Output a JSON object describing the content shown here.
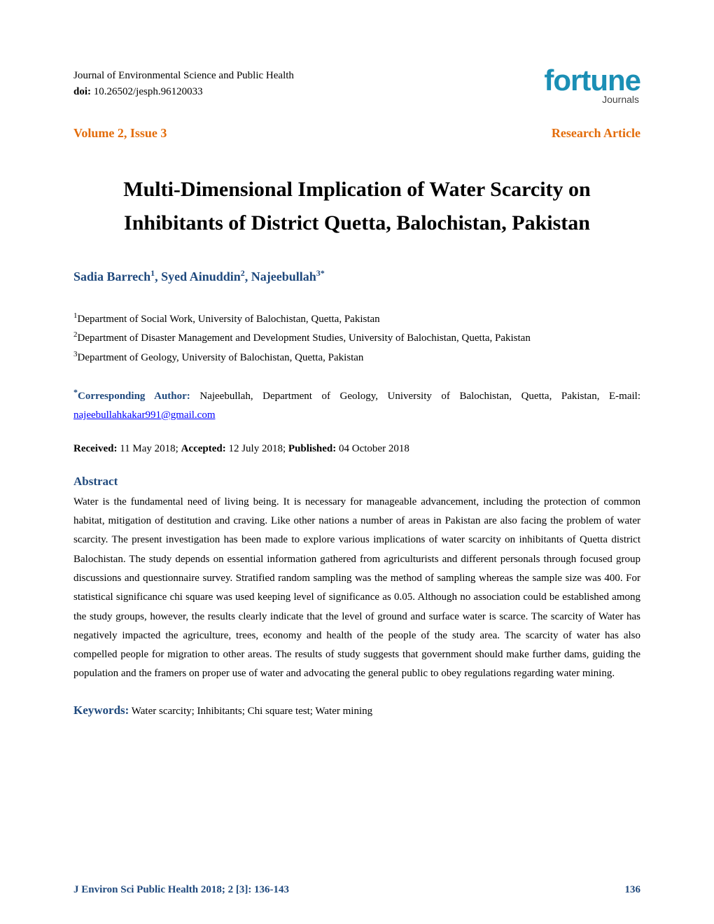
{
  "header": {
    "journal_name": "Journal of Environmental Science and Public Health",
    "doi_label": "doi:",
    "doi_value": " 10.26502/jesph.96120033",
    "logo_main": "fortune",
    "logo_sub": "Journals"
  },
  "meta": {
    "volume_issue": "Volume 2, Issue 3",
    "article_type": "Research Article"
  },
  "title": "Multi-Dimensional Implication of Water Scarcity on Inhibitants of District Quetta, Balochistan, Pakistan",
  "authors": {
    "a1_name": "Sadia Barrech",
    "a1_sup": "1",
    "a2_name": "Syed Ainuddin",
    "a2_sup": "2",
    "a3_name": "Najeebullah",
    "a3_sup": "3*"
  },
  "affiliations": {
    "aff1_sup": "1",
    "aff1": "Department of Social Work, University of Balochistan, Quetta, Pakistan",
    "aff2_sup": "2",
    "aff2": "Department of Disaster Management and Development Studies, University of Balochistan, Quetta, Pakistan",
    "aff3_sup": "3",
    "aff3": "Department of Geology, University of Balochistan, Quetta, Pakistan"
  },
  "corresponding": {
    "label_sup": "*",
    "label": "Corresponding Author:",
    "text": " Najeebullah, Department of Geology, University of Balochistan, Quetta, Pakistan, E-mail: ",
    "email": "najeebullahkakar991@gmail.com"
  },
  "dates": {
    "received_label": "Received:",
    "received": " 11 May 2018; ",
    "accepted_label": "Accepted:",
    "accepted": " 12 July 2018; ",
    "published_label": "Published:",
    "published": " 04 October 2018"
  },
  "abstract": {
    "heading": "Abstract",
    "text": "Water is the fundamental need of living being. It is necessary for manageable advancement, including the protection of common habitat, mitigation of destitution and craving. Like other nations a number of areas in Pakistan are also facing the problem of water scarcity. The present investigation has been made to explore various implications of water scarcity on inhibitants of Quetta district Balochistan. The study depends on essential information gathered from agriculturists and different personals through focused group discussions and questionnaire survey. Stratified random sampling was the method of sampling whereas the sample size was 400. For statistical significance chi square was used keeping level of significance as 0.05. Although no association could be established among the study groups, however, the results clearly indicate that the level of ground and surface water is scarce. The scarcity of Water has negatively impacted the agriculture, trees, economy and health of the people of the study area. The scarcity of water has also compelled people for migration to other areas. The results of study suggests that government should make further dams, guiding the population and the framers on proper use of water and advocating the general public to obey regulations regarding water mining."
  },
  "keywords": {
    "label": "Keywords:",
    "text": " Water scarcity; Inhibitants; Chi square test; Water mining"
  },
  "footer": {
    "citation": "J Environ Sci Public Health 2018; 2 [3]: 136-143",
    "page": "136"
  },
  "colors": {
    "accent_blue": "#1f497d",
    "accent_orange": "#e36c0a",
    "logo_blue": "#1b8fb5",
    "link_blue": "#0000ff",
    "text_black": "#000000",
    "background": "#ffffff"
  },
  "typography": {
    "body_font": "Times New Roman",
    "logo_font": "Arial",
    "title_size_pt": 22,
    "body_size_pt": 11,
    "heading_size_pt": 13
  }
}
